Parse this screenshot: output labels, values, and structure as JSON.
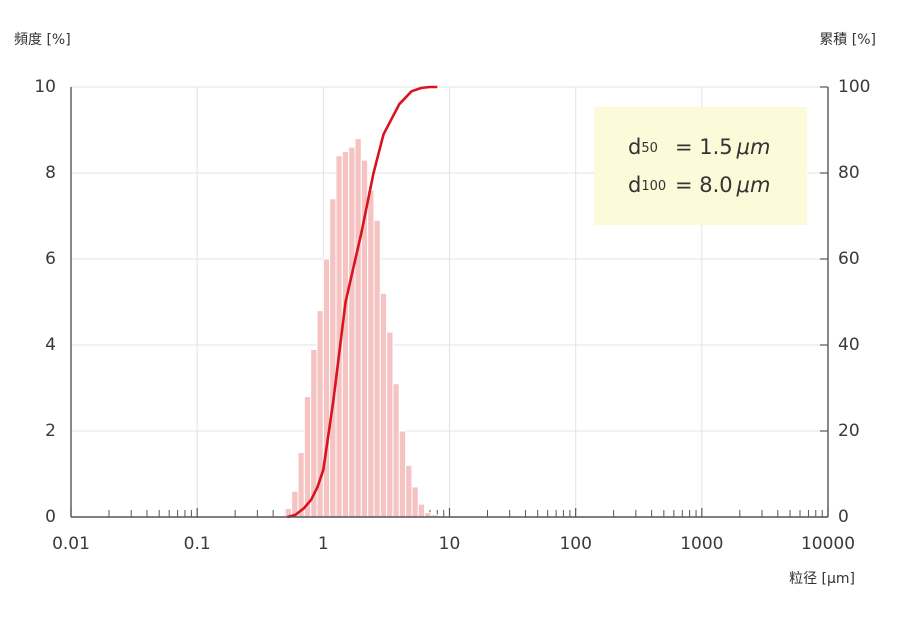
{
  "chart_data": {
    "type": "histogram",
    "ylabel": "頻度 [%]",
    "y2label": "累積 [%]",
    "xlabel": "粒径 [µm]",
    "xscale": "log",
    "xlim": [
      0.01,
      10000
    ],
    "xticks": [
      0.01,
      0.1,
      1,
      10,
      100,
      1000,
      10000
    ],
    "ylim": [
      0,
      10
    ],
    "yticks": [
      0,
      2,
      4,
      6,
      8,
      10
    ],
    "y2lim": [
      0,
      100
    ],
    "y2ticks": [
      0,
      20,
      40,
      60,
      80,
      100
    ],
    "grid": true,
    "bins": [
      0.5,
      0.561,
      0.63,
      0.707,
      0.794,
      0.891,
      1.0,
      1.122,
      1.26,
      1.414,
      1.587,
      1.782,
      2.0,
      2.245,
      2.52,
      2.828,
      3.175,
      3.564,
      4.0,
      4.49,
      5.04,
      5.657,
      6.35,
      7.127,
      8.0
    ],
    "values": [
      0.2,
      0.6,
      1.5,
      2.8,
      3.9,
      4.8,
      6.0,
      7.4,
      8.4,
      8.5,
      8.6,
      8.8,
      8.3,
      7.6,
      6.9,
      5.2,
      4.3,
      3.1,
      2.0,
      1.2,
      0.7,
      0.3,
      0.1,
      0.05
    ],
    "color": "#f6c3c3",
    "cumulative": {
      "axis": "y2",
      "color": "#d7141f",
      "x": [
        0.52,
        0.6,
        0.7,
        0.8,
        0.9,
        1.0,
        1.2,
        1.5,
        2.0,
        2.5,
        3.0,
        4.0,
        5.0,
        6.0,
        7.0,
        8.0
      ],
      "values": [
        0,
        0.5,
        2,
        4,
        7,
        11,
        27,
        50,
        66,
        80,
        89,
        96,
        99,
        99.8,
        100,
        100
      ]
    },
    "annotations": [
      {
        "symbol": "d",
        "subscript": "50",
        "text": "= 1.5",
        "unit": "μm"
      },
      {
        "symbol": "d",
        "subscript": "100",
        "text": "= 8.0",
        "unit": "μm"
      }
    ]
  }
}
